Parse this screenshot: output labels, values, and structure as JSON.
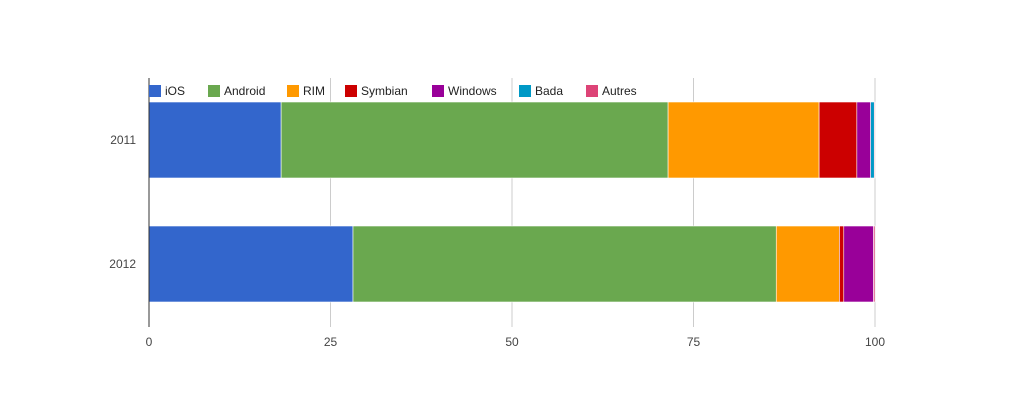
{
  "chart_data": {
    "type": "bar",
    "orientation": "horizontal",
    "stacked": true,
    "title": "",
    "xlabel": "",
    "ylabel": "",
    "categories": [
      "2011",
      "2012"
    ],
    "xlim": [
      0,
      100
    ],
    "x_ticks": [
      0,
      25,
      50,
      75,
      100
    ],
    "grid": true,
    "legend_position": "top",
    "series": [
      {
        "name": "iOS",
        "color": "#3366cc",
        "values": [
          18.2,
          28.1
        ]
      },
      {
        "name": "Android",
        "color": "#6aa84f",
        "values": [
          53.3,
          58.3
        ]
      },
      {
        "name": "RIM",
        "color": "#ff9900",
        "values": [
          20.8,
          8.7
        ]
      },
      {
        "name": "Symbian",
        "color": "#cc0000",
        "values": [
          5.2,
          0.6
        ]
      },
      {
        "name": "Windows",
        "color": "#990099",
        "values": [
          1.9,
          4.1
        ]
      },
      {
        "name": "Bada",
        "color": "#0099c6",
        "values": [
          0.5,
          0.0
        ]
      },
      {
        "name": "Autres",
        "color": "#dd4477",
        "values": [
          0.1,
          0.2
        ]
      }
    ]
  }
}
